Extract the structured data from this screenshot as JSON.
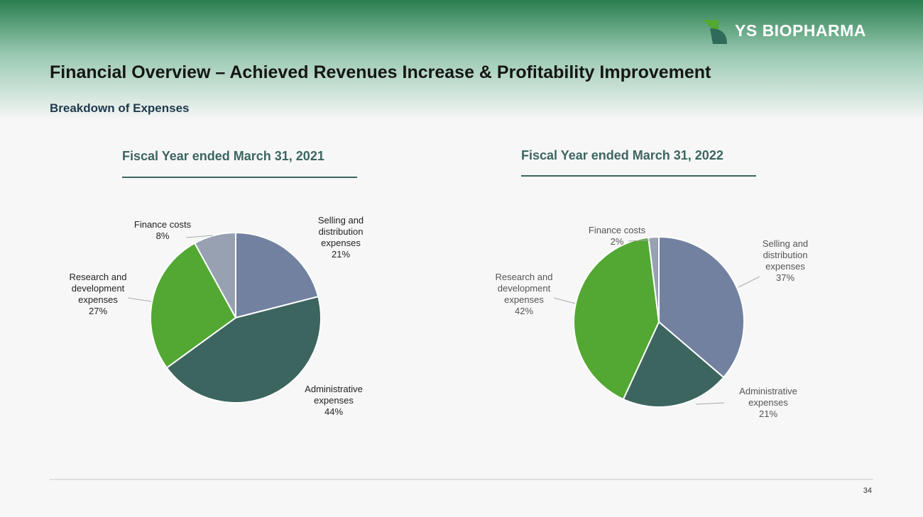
{
  "header": {
    "logo": "YS BIOPHARMA",
    "title": "Financial Overview – Achieved Revenues Increase &  Profitability Improvement",
    "subtitle": "Breakdown of Expenses"
  },
  "page_number": "34",
  "chart_data": [
    {
      "type": "pie",
      "title": "Fiscal Year ended March 31, 2021",
      "categories": [
        "Selling and distribution expenses",
        "Administrative expenses",
        "Research and development expenses",
        "Finance costs"
      ],
      "values": [
        21,
        44,
        27,
        8
      ],
      "value_labels": [
        "21%",
        "44%",
        "27%",
        "8%"
      ],
      "colors": [
        "#72819f",
        "#3d6560",
        "#52a832",
        "#97a1b1"
      ]
    },
    {
      "type": "pie",
      "title": "Fiscal Year ended March 31, 2022",
      "categories": [
        "Selling and distribution expenses",
        "Administrative expenses",
        "Research and development expenses",
        "Finance costs"
      ],
      "values": [
        37,
        21,
        42,
        2
      ],
      "value_labels": [
        "37%",
        "21%",
        "42%",
        "2%"
      ],
      "colors": [
        "#72819f",
        "#3d6560",
        "#52a832",
        "#97a1b1"
      ]
    }
  ]
}
